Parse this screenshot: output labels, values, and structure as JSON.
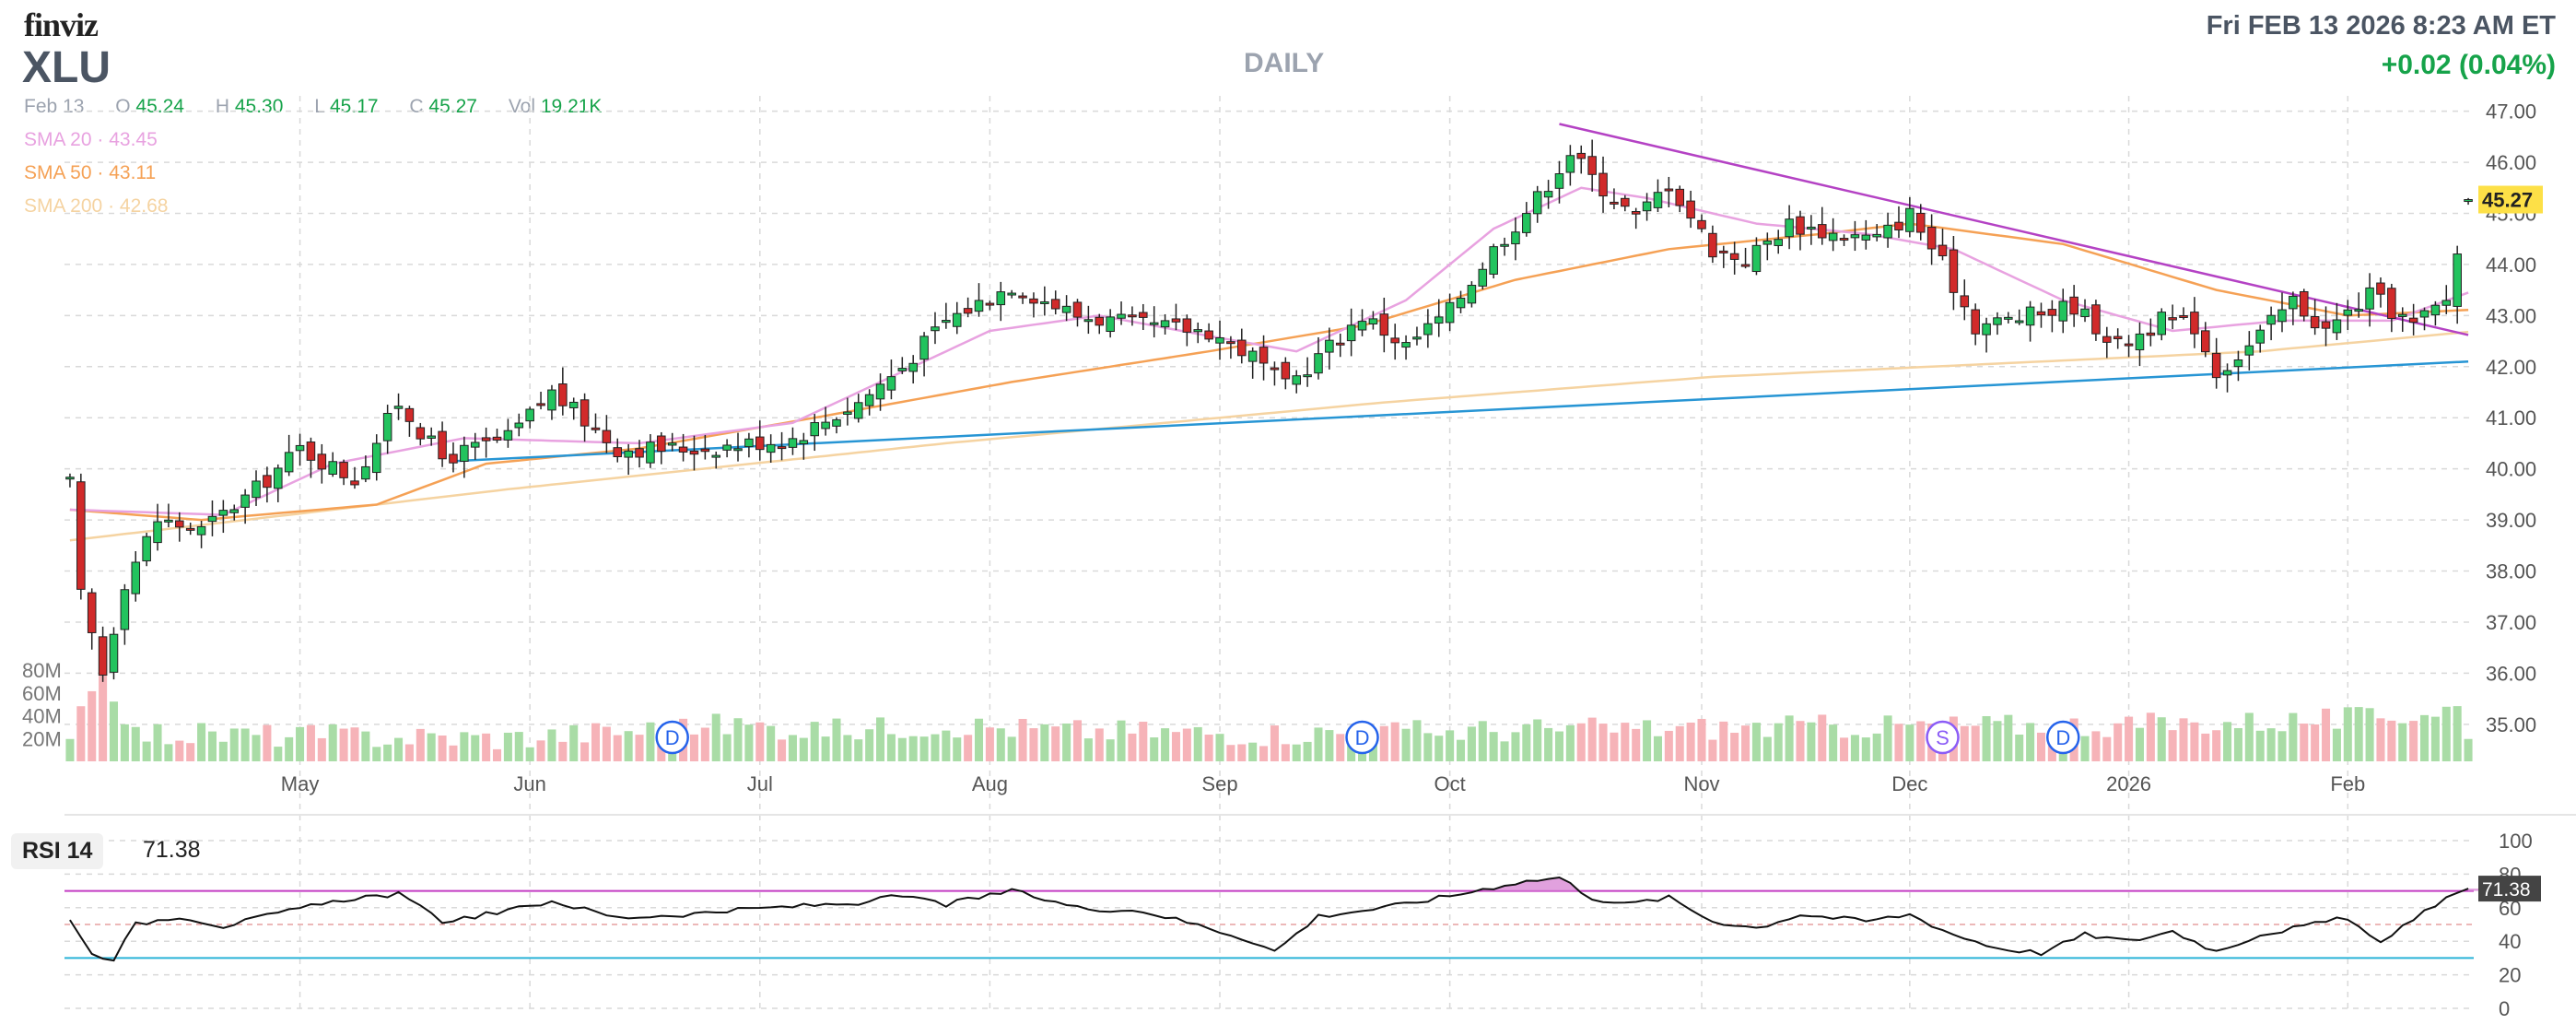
{
  "header": {
    "logo": "finviz",
    "ticker": "XLU",
    "period": "DAILY",
    "datetime": "Fri FEB 13 2026 8:23 AM ET",
    "change": "+0.02 (0.04%)"
  },
  "ohlc": {
    "date": "Feb 13",
    "open_label": "O",
    "open": "45.24",
    "high_label": "H",
    "high": "45.30",
    "low_label": "L",
    "low": "45.17",
    "close_label": "C",
    "close": "45.27",
    "vol_label": "Vol",
    "vol": "19.21K"
  },
  "sma": [
    {
      "label": "SMA 20",
      "value": "43.45",
      "color": "#e8a2e0"
    },
    {
      "label": "SMA 50",
      "value": "43.11",
      "color": "#f5a155"
    },
    {
      "label": "SMA 200",
      "value": "42.68",
      "color": "#f5d3a1"
    }
  ],
  "rsi": {
    "label": "RSI 14",
    "value": "71.38"
  },
  "colors": {
    "up": "#22c35e",
    "down": "#d12a2a",
    "volUp": "#a9dca6",
    "volDown": "#f6b3b8",
    "trendUpper": "#b442c4",
    "trendLower": "#2795d4",
    "rsiOver": "#c33cc3",
    "rsiUnder": "#2bb3d8"
  },
  "chart_data": {
    "type": "candlestick",
    "title": "XLU DAILY",
    "price_axis": {
      "ylim": [
        34.6,
        47.3
      ],
      "ticks": [
        "47.00",
        "46.00",
        "45.00",
        "44.00",
        "43.00",
        "42.00",
        "41.00",
        "40.00",
        "39.00",
        "38.00",
        "37.00",
        "36.00",
        "35.00"
      ]
    },
    "last_price_label": "45.27",
    "x_tick_labels": [
      "May",
      "Jun",
      "Jul",
      "Aug",
      "Sep",
      "Oct",
      "Nov",
      "Dec",
      "2026",
      "Feb"
    ],
    "x_tick_indices": [
      21,
      42,
      63,
      84,
      105,
      126,
      149,
      168,
      188,
      208
    ],
    "volume_axis": {
      "ylim": [
        0,
        110
      ],
      "ticks": [
        "80M",
        "60M",
        "40M",
        "20M"
      ],
      "tick_values": [
        80,
        60,
        40,
        20
      ]
    },
    "dividend_markers": [
      {
        "index": 55,
        "label": "D"
      },
      {
        "index": 118,
        "label": "D"
      },
      {
        "index": 171,
        "label": "S"
      },
      {
        "index": 182,
        "label": "D"
      }
    ],
    "rsi_axis": {
      "ylim": [
        0,
        100
      ],
      "ticks": [
        "100",
        "80",
        "60",
        "40",
        "20",
        "0"
      ],
      "tick_values": [
        100,
        80,
        60,
        40,
        20,
        0
      ]
    },
    "rsi_levels": {
      "overbought": 70,
      "oversold": 30
    },
    "trendlines": [
      {
        "name": "resistance",
        "from": [
          136,
          46.75
        ],
        "to": [
          219,
          42.62
        ]
      },
      {
        "name": "support",
        "from": [
          35,
          40.15
        ],
        "to": [
          219,
          42.1
        ]
      }
    ],
    "anchors": [
      [
        0,
        39.7
      ],
      [
        1,
        37.5
      ],
      [
        3,
        36.0
      ],
      [
        5,
        37.8
      ],
      [
        8,
        39.0
      ],
      [
        12,
        38.8
      ],
      [
        17,
        39.6
      ],
      [
        21,
        40.4
      ],
      [
        26,
        39.8
      ],
      [
        30,
        41.3
      ],
      [
        34,
        40.2
      ],
      [
        40,
        40.6
      ],
      [
        44,
        41.5
      ],
      [
        50,
        40.4
      ],
      [
        58,
        40.4
      ],
      [
        66,
        40.6
      ],
      [
        72,
        41.3
      ],
      [
        76,
        42.0
      ],
      [
        80,
        42.9
      ],
      [
        86,
        43.6
      ],
      [
        92,
        43.0
      ],
      [
        98,
        42.8
      ],
      [
        104,
        42.7
      ],
      [
        108,
        42.2
      ],
      [
        111,
        41.6
      ],
      [
        115,
        42.4
      ],
      [
        118,
        43.0
      ],
      [
        122,
        42.4
      ],
      [
        126,
        43.1
      ],
      [
        130,
        44.3
      ],
      [
        134,
        45.3
      ],
      [
        137,
        46.2
      ],
      [
        139,
        45.7
      ],
      [
        143,
        44.9
      ],
      [
        146,
        45.6
      ],
      [
        150,
        44.3
      ],
      [
        153,
        44.1
      ],
      [
        157,
        44.8
      ],
      [
        161,
        44.6
      ],
      [
        165,
        44.5
      ],
      [
        168,
        45.0
      ],
      [
        171,
        44.0
      ],
      [
        174,
        42.8
      ],
      [
        179,
        43.0
      ],
      [
        183,
        43.2
      ],
      [
        187,
        42.4
      ],
      [
        191,
        42.9
      ],
      [
        194,
        42.8
      ],
      [
        196,
        41.9
      ],
      [
        199,
        42.4
      ],
      [
        203,
        43.3
      ],
      [
        206,
        42.7
      ],
      [
        210,
        43.4
      ],
      [
        214,
        42.8
      ],
      [
        217,
        43.3
      ],
      [
        219,
        45.24
      ]
    ],
    "volume_anchors": [
      [
        0,
        28
      ],
      [
        3,
        88
      ],
      [
        4,
        60
      ],
      [
        6,
        22
      ],
      [
        40,
        18
      ],
      [
        60,
        30
      ],
      [
        70,
        25
      ],
      [
        80,
        30
      ],
      [
        90,
        25
      ],
      [
        110,
        22
      ],
      [
        130,
        25
      ],
      [
        160,
        28
      ],
      [
        190,
        30
      ],
      [
        210,
        35
      ],
      [
        218,
        45
      ],
      [
        219,
        15
      ]
    ],
    "rsi_anchors": [
      [
        0,
        54
      ],
      [
        2,
        32
      ],
      [
        4,
        30
      ],
      [
        6,
        50
      ],
      [
        10,
        55
      ],
      [
        14,
        49
      ],
      [
        20,
        58
      ],
      [
        26,
        66
      ],
      [
        30,
        68
      ],
      [
        34,
        52
      ],
      [
        40,
        58
      ],
      [
        44,
        64
      ],
      [
        50,
        54
      ],
      [
        56,
        56
      ],
      [
        64,
        60
      ],
      [
        72,
        63
      ],
      [
        76,
        67
      ],
      [
        80,
        62
      ],
      [
        86,
        70
      ],
      [
        92,
        60
      ],
      [
        98,
        58
      ],
      [
        104,
        48
      ],
      [
        108,
        40
      ],
      [
        110,
        34
      ],
      [
        114,
        55
      ],
      [
        120,
        60
      ],
      [
        126,
        67
      ],
      [
        132,
        75
      ],
      [
        136,
        78
      ],
      [
        139,
        66
      ],
      [
        142,
        62
      ],
      [
        146,
        66
      ],
      [
        150,
        52
      ],
      [
        154,
        48
      ],
      [
        158,
        56
      ],
      [
        164,
        52
      ],
      [
        168,
        56
      ],
      [
        172,
        44
      ],
      [
        176,
        36
      ],
      [
        180,
        33
      ],
      [
        184,
        44
      ],
      [
        188,
        40
      ],
      [
        192,
        46
      ],
      [
        196,
        34
      ],
      [
        200,
        44
      ],
      [
        204,
        49
      ],
      [
        208,
        54
      ],
      [
        211,
        38
      ],
      [
        214,
        54
      ],
      [
        217,
        66
      ],
      [
        219,
        71.38
      ]
    ],
    "sma20_anchors": [
      [
        0,
        39.2
      ],
      [
        14,
        39.1
      ],
      [
        24,
        40.1
      ],
      [
        36,
        40.6
      ],
      [
        52,
        40.5
      ],
      [
        66,
        40.9
      ],
      [
        84,
        42.7
      ],
      [
        94,
        43.0
      ],
      [
        104,
        42.6
      ],
      [
        112,
        42.3
      ],
      [
        122,
        43.3
      ],
      [
        130,
        44.7
      ],
      [
        138,
        45.5
      ],
      [
        144,
        45.3
      ],
      [
        154,
        44.8
      ],
      [
        164,
        44.6
      ],
      [
        172,
        44.3
      ],
      [
        182,
        43.3
      ],
      [
        192,
        42.7
      ],
      [
        202,
        42.9
      ],
      [
        212,
        42.9
      ],
      [
        219,
        43.45
      ]
    ],
    "sma50_anchors": [
      [
        0,
        39.2
      ],
      [
        12,
        39.0
      ],
      [
        28,
        39.3
      ],
      [
        38,
        40.1
      ],
      [
        52,
        40.4
      ],
      [
        68,
        41.0
      ],
      [
        86,
        41.7
      ],
      [
        104,
        42.3
      ],
      [
        118,
        42.8
      ],
      [
        132,
        43.7
      ],
      [
        146,
        44.3
      ],
      [
        160,
        44.6
      ],
      [
        168,
        44.8
      ],
      [
        182,
        44.4
      ],
      [
        196,
        43.5
      ],
      [
        208,
        43.0
      ],
      [
        219,
        43.11
      ]
    ],
    "sma200_anchors": [
      [
        0,
        38.6
      ],
      [
        40,
        39.6
      ],
      [
        80,
        40.5
      ],
      [
        120,
        41.3
      ],
      [
        150,
        41.8
      ],
      [
        180,
        42.1
      ],
      [
        200,
        42.3
      ],
      [
        219,
        42.68
      ]
    ]
  }
}
